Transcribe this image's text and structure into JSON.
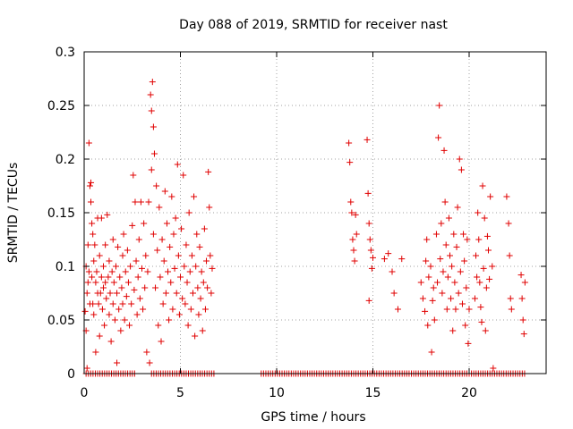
{
  "chart_data": {
    "type": "scatter",
    "title": "Day 088 of 2019, SRMTID for receiver nast",
    "xlabel": "GPS time / hours",
    "ylabel": "SRMTID / TECUs",
    "xlim": [
      0,
      24
    ],
    "ylim": [
      0,
      0.3
    ],
    "grid": true,
    "marker": "+",
    "marker_color": "#e00000",
    "grid_color": "#a0a0a0",
    "x_ticks": [
      {
        "value": 0,
        "label": "0"
      },
      {
        "value": 5,
        "label": "5"
      },
      {
        "value": 10,
        "label": "10"
      },
      {
        "value": 15,
        "label": "15"
      },
      {
        "value": 20,
        "label": "20"
      }
    ],
    "y_ticks": [
      {
        "value": 0,
        "label": "0"
      },
      {
        "value": 0.05,
        "label": "0.05"
      },
      {
        "value": 0.1,
        "label": "0.1"
      },
      {
        "value": 0.15,
        "label": "0.15"
      },
      {
        "value": 0.2,
        "label": "0.2"
      },
      {
        "value": 0.25,
        "label": "0.25"
      },
      {
        "value": 0.3,
        "label": "0.3"
      }
    ],
    "series": [
      {
        "name": "SRMTID",
        "points": [
          [
            0.05,
            0.058
          ],
          [
            0.1,
            0.04
          ],
          [
            0.1,
            0.1
          ],
          [
            0.15,
            0.075
          ],
          [
            0.15,
            0.005
          ],
          [
            0.2,
            0.085
          ],
          [
            0.2,
            0.12
          ],
          [
            0.25,
            0.215
          ],
          [
            0.25,
            0.095
          ],
          [
            0.3,
            0.175
          ],
          [
            0.3,
            0.065
          ],
          [
            0.35,
            0.178
          ],
          [
            0.35,
            0.16
          ],
          [
            0.4,
            0.14
          ],
          [
            0.4,
            0.09
          ],
          [
            0.45,
            0.13
          ],
          [
            0.45,
            0.065
          ],
          [
            0.5,
            0.105
          ],
          [
            0.5,
            0.055
          ],
          [
            0.55,
            0.12
          ],
          [
            0.6,
            0.085
          ],
          [
            0.6,
            0.02
          ],
          [
            0.65,
            0.095
          ],
          [
            0.7,
            0.145
          ],
          [
            0.7,
            0.075
          ],
          [
            0.75,
            0.065
          ],
          [
            0.8,
            0.11
          ],
          [
            0.8,
            0.035
          ],
          [
            0.85,
            0.075
          ],
          [
            0.9,
            0.09
          ],
          [
            0.9,
            0.145
          ],
          [
            0.95,
            0.06
          ],
          [
            1.0,
            0.1
          ],
          [
            1.0,
            0.08
          ],
          [
            1.05,
            0.045
          ],
          [
            1.1,
            0.085
          ],
          [
            1.1,
            0.12
          ],
          [
            1.15,
            0.07
          ],
          [
            1.2,
            0.148
          ],
          [
            1.25,
            0.09
          ],
          [
            1.3,
            0.055
          ],
          [
            1.3,
            0.105
          ],
          [
            1.35,
            0.075
          ],
          [
            1.4,
            0.03
          ],
          [
            1.45,
            0.095
          ],
          [
            1.5,
            0.065
          ],
          [
            1.5,
            0.125
          ],
          [
            1.55,
            0.085
          ],
          [
            1.6,
            0.05
          ],
          [
            1.65,
            0.1
          ],
          [
            1.7,
            0.075
          ],
          [
            1.7,
            0.01
          ],
          [
            1.75,
            0.118
          ],
          [
            1.8,
            0.06
          ],
          [
            1.85,
            0.09
          ],
          [
            1.9,
            0.04
          ],
          [
            1.95,
            0.08
          ],
          [
            2.0,
            0.11
          ],
          [
            2.0,
            0.065
          ],
          [
            2.05,
            0.13
          ],
          [
            2.1,
            0.05
          ],
          [
            2.15,
            0.095
          ],
          [
            2.2,
            0.072
          ],
          [
            2.25,
            0.115
          ],
          [
            2.3,
            0.085
          ],
          [
            2.35,
            0.045
          ],
          [
            2.4,
            0.1
          ],
          [
            2.45,
            0.065
          ],
          [
            2.5,
            0.138
          ],
          [
            2.55,
            0.185
          ],
          [
            2.6,
            0.078
          ],
          [
            2.65,
            0.16
          ],
          [
            2.7,
            0.105
          ],
          [
            2.75,
            0.055
          ],
          [
            2.8,
            0.09
          ],
          [
            2.85,
            0.125
          ],
          [
            2.9,
            0.07
          ],
          [
            2.95,
            0.16
          ],
          [
            3.0,
            0.098
          ],
          [
            3.05,
            0.06
          ],
          [
            3.1,
            0.14
          ],
          [
            3.15,
            0.08
          ],
          [
            3.2,
            0.11
          ],
          [
            3.25,
            0.02
          ],
          [
            3.3,
            0.095
          ],
          [
            3.35,
            0.16
          ],
          [
            3.4,
            0.01
          ],
          [
            3.45,
            0.26
          ],
          [
            3.5,
            0.245
          ],
          [
            3.5,
            0.19
          ],
          [
            3.55,
            0.272
          ],
          [
            3.6,
            0.23
          ],
          [
            3.6,
            0.13
          ],
          [
            3.65,
            0.205
          ],
          [
            3.7,
            0.08
          ],
          [
            3.75,
            0.175
          ],
          [
            3.8,
            0.115
          ],
          [
            3.85,
            0.045
          ],
          [
            3.9,
            0.155
          ],
          [
            3.95,
            0.09
          ],
          [
            4.0,
            0.03
          ],
          [
            4.05,
            0.125
          ],
          [
            4.1,
            0.065
          ],
          [
            4.15,
            0.105
          ],
          [
            4.2,
            0.17
          ],
          [
            4.25,
            0.075
          ],
          [
            4.3,
            0.14
          ],
          [
            4.35,
            0.095
          ],
          [
            4.4,
            0.05
          ],
          [
            4.45,
            0.118
          ],
          [
            4.5,
            0.085
          ],
          [
            4.55,
            0.165
          ],
          [
            4.6,
            0.06
          ],
          [
            4.65,
            0.13
          ],
          [
            4.7,
            0.098
          ],
          [
            4.75,
            0.145
          ],
          [
            4.8,
            0.075
          ],
          [
            4.85,
            0.195
          ],
          [
            4.9,
            0.11
          ],
          [
            4.95,
            0.055
          ],
          [
            5.0,
            0.09
          ],
          [
            5.05,
            0.135
          ],
          [
            5.1,
            0.07
          ],
          [
            5.15,
            0.185
          ],
          [
            5.2,
            0.1
          ],
          [
            5.25,
            0.065
          ],
          [
            5.3,
            0.12
          ],
          [
            5.35,
            0.085
          ],
          [
            5.4,
            0.045
          ],
          [
            5.45,
            0.15
          ],
          [
            5.5,
            0.095
          ],
          [
            5.55,
            0.06
          ],
          [
            5.6,
            0.11
          ],
          [
            5.65,
            0.075
          ],
          [
            5.7,
            0.165
          ],
          [
            5.75,
            0.035
          ],
          [
            5.8,
            0.1
          ],
          [
            5.85,
            0.13
          ],
          [
            5.9,
            0.08
          ],
          [
            5.95,
            0.055
          ],
          [
            6.0,
            0.118
          ],
          [
            6.05,
            0.07
          ],
          [
            6.1,
            0.095
          ],
          [
            6.15,
            0.04
          ],
          [
            6.2,
            0.085
          ],
          [
            6.25,
            0.135
          ],
          [
            6.3,
            0.06
          ],
          [
            6.35,
            0.105
          ],
          [
            6.4,
            0.08
          ],
          [
            6.45,
            0.188
          ],
          [
            6.5,
            0.155
          ],
          [
            6.55,
            0.11
          ],
          [
            6.6,
            0.075
          ],
          [
            6.65,
            0.098
          ],
          [
            13.75,
            0.215
          ],
          [
            13.8,
            0.197
          ],
          [
            13.85,
            0.16
          ],
          [
            13.9,
            0.15
          ],
          [
            13.95,
            0.125
          ],
          [
            14.0,
            0.115
          ],
          [
            14.05,
            0.105
          ],
          [
            14.1,
            0.148
          ],
          [
            14.15,
            0.13
          ],
          [
            14.7,
            0.218
          ],
          [
            14.75,
            0.168
          ],
          [
            14.8,
            0.14
          ],
          [
            14.85,
            0.125
          ],
          [
            14.9,
            0.115
          ],
          [
            14.95,
            0.098
          ],
          [
            15.0,
            0.108
          ],
          [
            14.8,
            0.068
          ],
          [
            15.6,
            0.107
          ],
          [
            15.8,
            0.112
          ],
          [
            16.0,
            0.095
          ],
          [
            16.1,
            0.075
          ],
          [
            16.3,
            0.06
          ],
          [
            16.5,
            0.107
          ],
          [
            17.5,
            0.085
          ],
          [
            17.6,
            0.07
          ],
          [
            17.7,
            0.058
          ],
          [
            17.75,
            0.105
          ],
          [
            17.8,
            0.125
          ],
          [
            17.85,
            0.045
          ],
          [
            17.9,
            0.09
          ],
          [
            18.0,
            0.1
          ],
          [
            18.05,
            0.02
          ],
          [
            18.1,
            0.068
          ],
          [
            18.15,
            0.08
          ],
          [
            18.2,
            0.05
          ],
          [
            18.3,
            0.13
          ],
          [
            18.35,
            0.085
          ],
          [
            18.4,
            0.22
          ],
          [
            18.45,
            0.25
          ],
          [
            18.5,
            0.107
          ],
          [
            18.55,
            0.14
          ],
          [
            18.6,
            0.075
          ],
          [
            18.65,
            0.095
          ],
          [
            18.7,
            0.208
          ],
          [
            18.75,
            0.16
          ],
          [
            18.8,
            0.12
          ],
          [
            18.85,
            0.06
          ],
          [
            18.9,
            0.09
          ],
          [
            18.95,
            0.145
          ],
          [
            19.0,
            0.11
          ],
          [
            19.05,
            0.07
          ],
          [
            19.1,
            0.1
          ],
          [
            19.15,
            0.04
          ],
          [
            19.2,
            0.13
          ],
          [
            19.25,
            0.085
          ],
          [
            19.3,
            0.06
          ],
          [
            19.35,
            0.118
          ],
          [
            19.4,
            0.155
          ],
          [
            19.45,
            0.075
          ],
          [
            19.5,
            0.2
          ],
          [
            19.55,
            0.095
          ],
          [
            19.6,
            0.19
          ],
          [
            19.65,
            0.065
          ],
          [
            19.7,
            0.13
          ],
          [
            19.75,
            0.105
          ],
          [
            19.8,
            0.045
          ],
          [
            19.85,
            0.08
          ],
          [
            19.9,
            0.125
          ],
          [
            19.95,
            0.028
          ],
          [
            20.0,
            0.06
          ],
          [
            20.3,
            0.07
          ],
          [
            20.35,
            0.11
          ],
          [
            20.4,
            0.09
          ],
          [
            20.45,
            0.15
          ],
          [
            20.5,
            0.125
          ],
          [
            20.55,
            0.085
          ],
          [
            20.6,
            0.062
          ],
          [
            20.65,
            0.048
          ],
          [
            20.7,
            0.175
          ],
          [
            20.75,
            0.098
          ],
          [
            20.8,
            0.145
          ],
          [
            20.85,
            0.04
          ],
          [
            20.9,
            0.08
          ],
          [
            20.95,
            0.128
          ],
          [
            21.0,
            0.115
          ],
          [
            21.05,
            0.088
          ],
          [
            21.1,
            0.165
          ],
          [
            21.2,
            0.1
          ],
          [
            21.25,
            0.005
          ],
          [
            21.95,
            0.165
          ],
          [
            22.05,
            0.14
          ],
          [
            22.1,
            0.11
          ],
          [
            22.2,
            0.06
          ],
          [
            22.15,
            0.07
          ],
          [
            22.7,
            0.092
          ],
          [
            22.75,
            0.07
          ],
          [
            22.8,
            0.05
          ],
          [
            22.85,
            0.037
          ],
          [
            22.9,
            0.085
          ]
        ]
      }
    ],
    "zero_markers": {
      "description": "dense row of points plotted at y = 0",
      "ranges": [
        [
          0.1,
          2.7
        ],
        [
          3.5,
          6.8
        ],
        [
          9.2,
          22.9
        ]
      ],
      "step": 0.12
    }
  }
}
